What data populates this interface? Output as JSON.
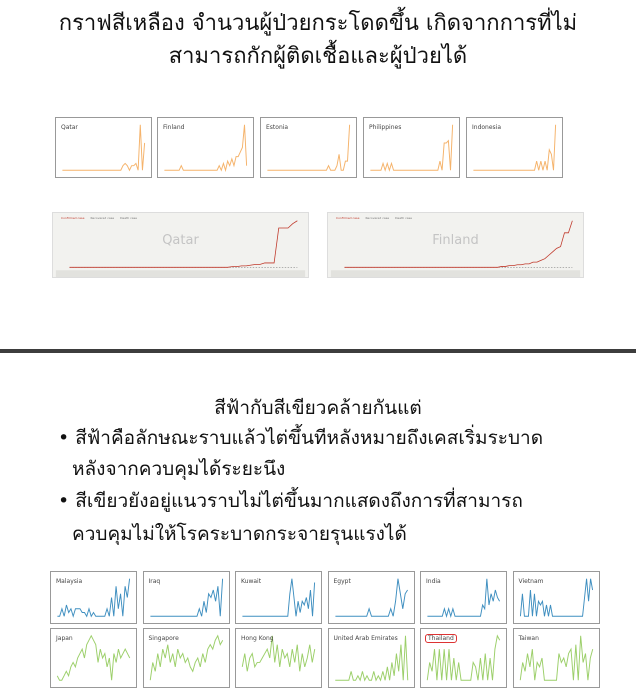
{
  "slide1": {
    "title_lines": [
      "กราฟสีเหลือง จำนวนผู้ป่วยกระโดดขึ้น เกิดจากการที่ไม่",
      "สามารถกักผู้ติดเชื้อและผู้ป่วยได้"
    ]
  },
  "slide2": {
    "heading": "สีฟ้ากับสีเขียวคล้ายกันแต่",
    "bullets": [
      {
        "lines": [
          "• สีฟ้าคือลักษณะราบแล้วไต่ขึ้นทีหลังหมายถึงเคสเริ่มระบาด",
          "หลังจากควบคุมได้ระยะนึง"
        ]
      },
      {
        "lines": [
          "• สีเขียวยังอยู่แนวราบไม่ไต่ขึ้นมากแสดงถึงการที่สามารถ",
          "ควบคุมไม่ให้โรคระบาดกระจายรุนแรงได้"
        ]
      }
    ]
  },
  "colors": {
    "orange": "#f5b36b",
    "blue": "#3f8fc0",
    "green": "#9ccf6a",
    "confirmed": "#c0392b",
    "highlight": "#d33333"
  },
  "chart_data": [
    {
      "type": "line",
      "group": "orange",
      "charts": [
        {
          "name": "Qatar",
          "values": [
            0,
            0,
            0,
            0,
            0,
            0,
            0,
            0,
            0,
            0,
            0,
            0,
            0,
            0,
            0,
            0,
            0,
            0,
            0,
            0,
            0,
            0,
            0,
            0,
            0,
            0,
            0,
            0,
            1,
            1.5,
            1,
            0,
            1,
            1,
            1.5,
            0,
            10,
            0,
            6
          ]
        },
        {
          "name": "Finland",
          "values": [
            0,
            0,
            0,
            0,
            0,
            0,
            0,
            0,
            1,
            0,
            0,
            0,
            0,
            0,
            0,
            0,
            0,
            0,
            0,
            0,
            0,
            0,
            0,
            0,
            0,
            0,
            1,
            0,
            1.5,
            0,
            2,
            1,
            2.5,
            1,
            3,
            3,
            4,
            5,
            10,
            1
          ]
        },
        {
          "name": "Estonia",
          "values": [
            0,
            0,
            0,
            0,
            0,
            0,
            0,
            0,
            0,
            0,
            0,
            0,
            0,
            0,
            0,
            0,
            0,
            0,
            0,
            0,
            0,
            0,
            0,
            0,
            0,
            0,
            0,
            0,
            0,
            1,
            0,
            0,
            0,
            1,
            3.5,
            0,
            0,
            2,
            2,
            10
          ]
        },
        {
          "name": "Philippines",
          "values": [
            0,
            0,
            0,
            0,
            0,
            0,
            1.5,
            0,
            1.5,
            0,
            1.5,
            0,
            0,
            0,
            0,
            0,
            0,
            0,
            0,
            0,
            0,
            0,
            0,
            0,
            0,
            0,
            0,
            0,
            0,
            0,
            0,
            0,
            0,
            2,
            0,
            6,
            6,
            6.5,
            0,
            10
          ]
        },
        {
          "name": "Indonesia",
          "values": [
            0,
            0,
            0,
            0,
            0,
            0,
            0,
            0,
            0,
            0,
            0,
            0,
            0,
            0,
            0,
            0,
            0,
            0,
            0,
            0,
            0,
            0,
            0,
            0,
            0,
            0,
            0,
            0,
            0,
            0,
            2,
            0,
            2,
            0,
            2,
            0,
            4.5,
            3.5,
            0,
            10
          ]
        }
      ]
    },
    {
      "type": "line",
      "group": "cumulative",
      "legend": [
        "Confirmed case",
        "Recovered case",
        "Death case"
      ],
      "charts": [
        {
          "name": "Qatar",
          "confirmed": [
            0,
            0,
            0,
            0,
            0,
            0,
            0,
            0,
            0,
            0,
            0,
            0,
            0,
            0,
            0,
            0,
            0,
            0,
            0,
            0,
            0,
            0,
            0,
            0,
            0,
            0,
            0,
            0,
            0,
            0,
            0,
            0,
            0,
            0,
            0,
            0.5,
            0.5,
            1,
            1,
            1.5,
            2,
            2,
            3,
            3,
            3,
            27,
            27,
            27,
            30,
            32
          ]
        },
        {
          "name": "Finland",
          "confirmed": [
            0,
            0,
            0,
            0,
            0,
            0,
            0,
            0,
            0,
            0,
            0,
            0,
            0,
            0,
            0,
            0,
            0,
            0,
            0,
            0,
            0,
            0,
            0,
            0,
            0,
            0,
            0,
            0,
            0,
            0,
            0,
            0,
            0,
            0,
            0,
            0,
            0,
            0,
            0,
            0,
            0.5,
            0.5,
            1,
            1,
            1.5,
            1.5,
            2,
            2,
            3,
            3,
            4,
            5,
            7,
            9,
            11,
            12,
            20,
            20,
            27
          ]
        }
      ]
    },
    {
      "type": "line",
      "group": "blue",
      "charts": [
        {
          "name": "Malaysia",
          "values": [
            0,
            0,
            2,
            0,
            3,
            1,
            2,
            0,
            2,
            2,
            2,
            1,
            1,
            0,
            2,
            0,
            1,
            0,
            0,
            0,
            0,
            0,
            2,
            0,
            5,
            0,
            8,
            2,
            6,
            0,
            8,
            5,
            10
          ]
        },
        {
          "name": "Iraq",
          "values": [
            0,
            0,
            0,
            0,
            0,
            0,
            0,
            0,
            0,
            0,
            0,
            0,
            0,
            0,
            0,
            0,
            0,
            0,
            0,
            0,
            0,
            2,
            0,
            4,
            1,
            6,
            5,
            7,
            4,
            8,
            0,
            10
          ]
        },
        {
          "name": "Kuwait",
          "values": [
            0,
            0,
            0,
            0,
            0,
            0,
            0,
            0,
            0,
            0,
            0,
            0,
            0,
            0,
            0,
            0,
            0,
            0,
            0,
            0,
            0,
            0,
            0,
            6,
            10,
            5,
            0,
            4,
            1,
            4,
            3,
            5,
            2,
            7,
            0,
            9
          ]
        },
        {
          "name": "Egypt",
          "values": [
            0,
            0,
            0,
            0,
            0,
            0,
            0,
            0,
            0,
            0,
            0,
            0,
            0,
            0,
            2,
            0,
            0,
            0,
            0,
            0,
            0,
            0,
            0,
            2,
            0,
            4,
            10,
            6,
            2,
            6,
            7
          ]
        },
        {
          "name": "India",
          "values": [
            0,
            0,
            0,
            0,
            0,
            0,
            0,
            0,
            2,
            0,
            2,
            0,
            2,
            0,
            0,
            0,
            0,
            0,
            0,
            0,
            0,
            0,
            0,
            0,
            0,
            0,
            3,
            2,
            10,
            3,
            6,
            4,
            7,
            5,
            4
          ]
        },
        {
          "name": "Vietnam",
          "values": [
            0,
            6,
            0,
            0,
            0,
            7,
            0,
            6,
            0,
            4,
            3,
            4,
            0,
            3,
            0,
            3,
            0,
            0,
            0,
            0,
            0,
            0,
            0,
            0,
            0,
            0,
            0,
            0,
            0,
            0,
            0,
            0,
            5,
            10,
            4,
            10,
            7
          ]
        }
      ]
    },
    {
      "type": "line",
      "group": "green",
      "charts": [
        {
          "name": "Japan",
          "values": [
            1,
            0,
            0,
            1,
            2,
            1,
            3,
            4,
            3,
            5,
            6,
            7,
            5,
            8,
            9,
            10,
            9,
            8,
            4,
            7,
            5,
            6,
            3,
            5,
            0,
            6,
            4,
            7,
            5,
            6,
            7,
            6,
            5
          ]
        },
        {
          "name": "Singapore",
          "values": [
            0,
            4,
            2,
            6,
            3,
            7,
            5,
            8,
            4,
            6,
            3,
            7,
            5,
            6,
            4,
            5,
            3,
            2,
            4,
            5,
            3,
            6,
            4,
            7,
            8,
            7,
            9,
            10,
            8,
            9
          ]
        },
        {
          "name": "Hong Kong",
          "values": [
            3,
            6,
            2,
            5,
            6,
            3,
            4,
            4,
            5,
            6,
            7,
            5,
            10,
            4,
            8,
            3,
            7,
            5,
            6,
            3,
            7,
            4,
            8,
            2,
            6,
            3,
            5,
            8,
            4,
            7
          ]
        },
        {
          "name": "United Arab Emirates",
          "values": [
            0,
            0,
            0,
            0,
            0,
            0,
            0,
            2,
            0,
            0,
            1,
            0,
            2,
            0,
            1,
            0,
            0,
            2,
            0,
            1,
            0,
            2,
            0,
            3,
            0,
            4,
            1,
            6,
            2,
            8,
            0,
            10,
            0
          ]
        },
        {
          "name": "Thailand",
          "values": [
            0,
            4,
            2,
            7,
            0,
            7,
            0,
            7,
            0,
            7,
            0,
            5,
            0,
            4,
            0,
            0,
            0,
            0,
            0,
            4,
            3,
            0,
            5,
            0,
            6,
            0,
            5,
            0,
            7,
            10,
            9
          ]
        },
        {
          "name": "Taiwan",
          "values": [
            0,
            4,
            2,
            6,
            3,
            7,
            0,
            4,
            3,
            5,
            0,
            0,
            0,
            0,
            0,
            0,
            6,
            4,
            5,
            3,
            6,
            7,
            0,
            8,
            0,
            10,
            4,
            6,
            0,
            5,
            7
          ]
        }
      ]
    }
  ]
}
